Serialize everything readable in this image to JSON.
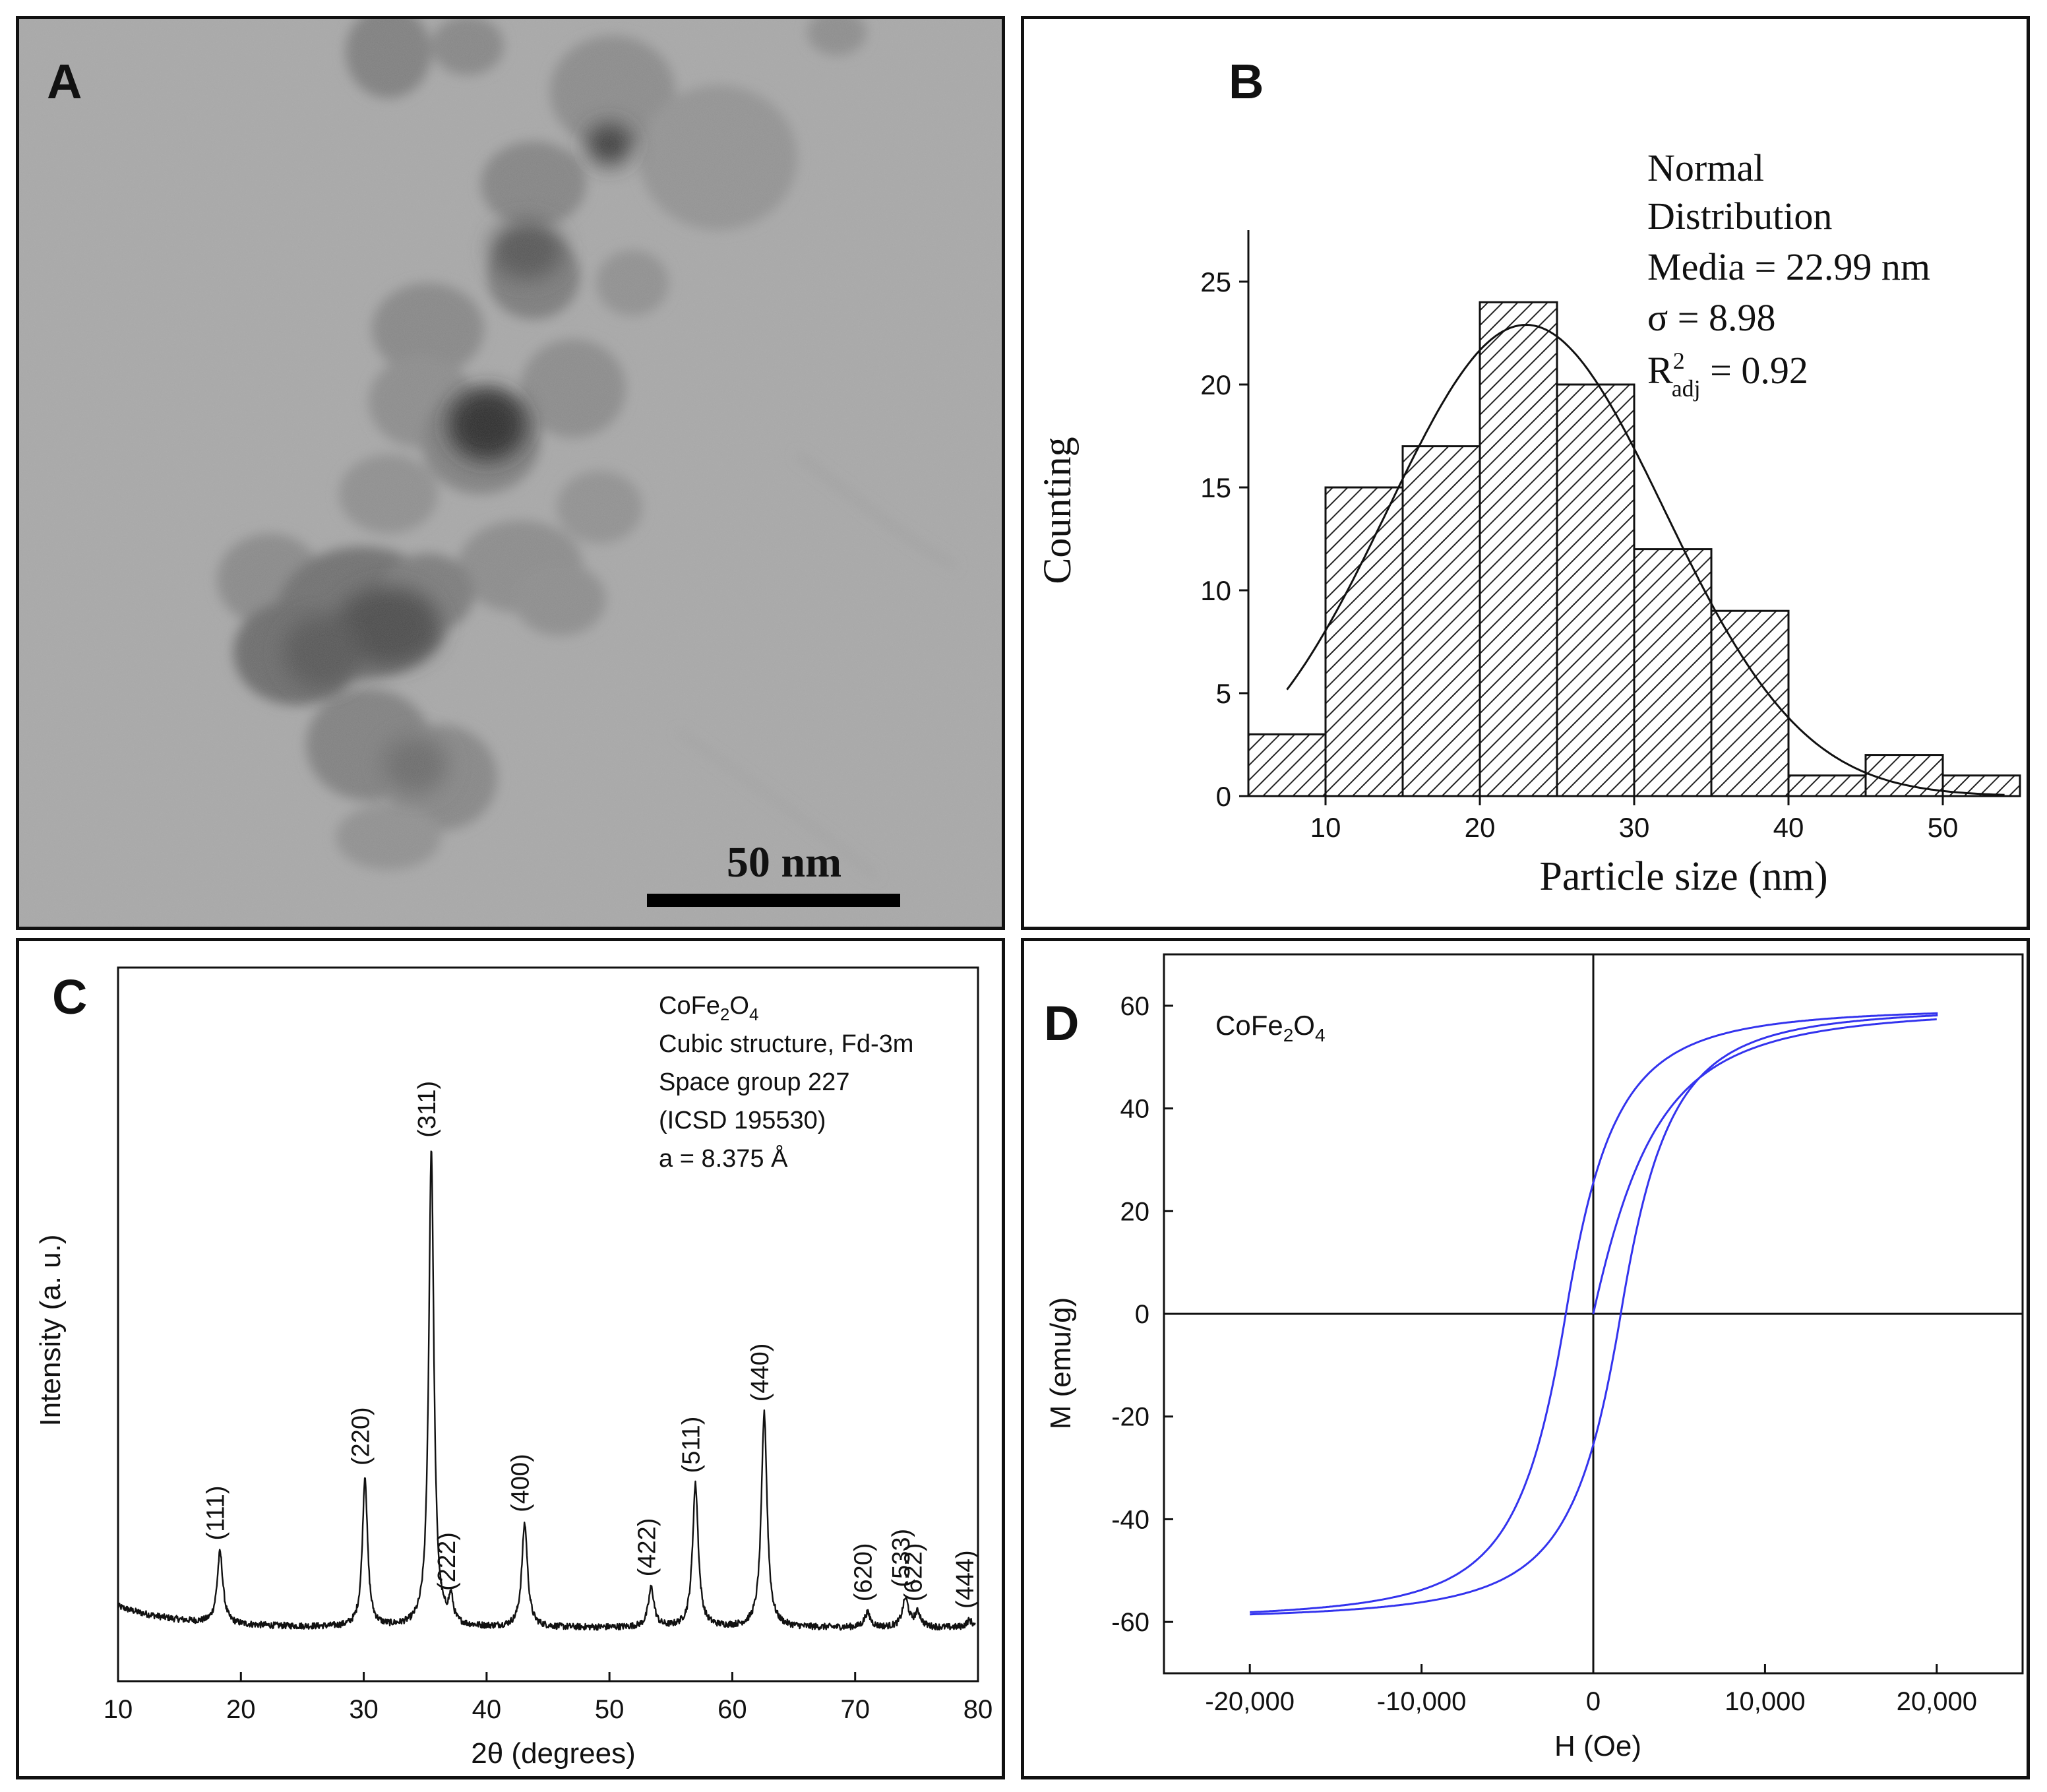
{
  "panels": {
    "a": {
      "letter": "A",
      "scale_bar_label": "50 nm",
      "image_icon": "tem-micrograph-nanoparticles"
    },
    "b": {
      "letter": "B"
    },
    "c": {
      "letter": "C"
    },
    "d": {
      "letter": "D"
    }
  },
  "chart_data": [
    {
      "id": "B",
      "type": "bar",
      "title": "",
      "xlabel": "Particle size (nm)",
      "ylabel": "Counting",
      "xlim": [
        5,
        55
      ],
      "ylim": [
        0,
        27.5
      ],
      "xticks": [
        10,
        20,
        30,
        40,
        50
      ],
      "yticks": [
        0,
        5,
        10,
        15,
        20,
        25
      ],
      "bins": [
        {
          "start": 5,
          "end": 10,
          "count": 3
        },
        {
          "start": 10,
          "end": 15,
          "count": 15
        },
        {
          "start": 15,
          "end": 20,
          "count": 17
        },
        {
          "start": 20,
          "end": 25,
          "count": 24
        },
        {
          "start": 25,
          "end": 30,
          "count": 20
        },
        {
          "start": 30,
          "end": 35,
          "count": 12
        },
        {
          "start": 35,
          "end": 40,
          "count": 9
        },
        {
          "start": 40,
          "end": 45,
          "count": 1
        },
        {
          "start": 45,
          "end": 50,
          "count": 2
        },
        {
          "start": 50,
          "end": 55,
          "count": 1
        }
      ],
      "fit": {
        "type": "normal",
        "mean": 22.99,
        "sigma": 8.98,
        "peak": 22.9,
        "x_start": 7.5,
        "x_end": 54
      },
      "annotation": {
        "line1": "Normal",
        "line2": "Distribution",
        "line3": "Media = 22.99 nm",
        "line4": "σ = 8.98",
        "line5_prefix": "R",
        "line5_sup": "2",
        "line5_sub": "adj",
        "line5_rest": " = 0.92"
      }
    },
    {
      "id": "C",
      "type": "line",
      "title": "",
      "xlabel": "2θ (degrees)",
      "ylabel": "Intensity (a. u.)",
      "xlim": [
        10,
        80
      ],
      "ylim": [
        0,
        100
      ],
      "xticks": [
        10,
        20,
        30,
        40,
        50,
        60,
        70,
        80
      ],
      "baseline": {
        "start": 10.5,
        "end_value": 7.5,
        "decay": 5,
        "x_start": 10,
        "x_end": 79.8
      },
      "peaks": [
        {
          "label": "(111)",
          "two_theta": 18.3,
          "height": 10.0,
          "width": 0.28
        },
        {
          "label": "(220)",
          "two_theta": 30.1,
          "height": 21.0,
          "width": 0.25
        },
        {
          "label": "(311)",
          "two_theta": 35.5,
          "height": 67.0,
          "width": 0.25
        },
        {
          "label": "(222)",
          "two_theta": 37.1,
          "height": 3.5,
          "width": 0.22
        },
        {
          "label": "(400)",
          "two_theta": 43.1,
          "height": 14.5,
          "width": 0.28
        },
        {
          "label": "(422)",
          "two_theta": 53.4,
          "height": 5.5,
          "width": 0.28
        },
        {
          "label": "(511)",
          "two_theta": 57.0,
          "height": 20.0,
          "width": 0.28
        },
        {
          "label": "(440)",
          "two_theta": 62.6,
          "height": 30.0,
          "width": 0.28
        },
        {
          "label": "(620)",
          "two_theta": 71.0,
          "height": 2.0,
          "width": 0.3
        },
        {
          "label": "(533)",
          "two_theta": 74.1,
          "height": 4.0,
          "width": 0.3
        },
        {
          "label": "(622)",
          "two_theta": 75.1,
          "height": 2.0,
          "width": 0.3
        },
        {
          "label": "(444)",
          "two_theta": 79.3,
          "height": 1.0,
          "width": 0.3
        }
      ],
      "annotation": {
        "formula_parts": [
          {
            "text": "CoFe",
            "shift": "none"
          },
          {
            "text": "2",
            "shift": "sub"
          },
          {
            "text": "O",
            "shift": "none"
          },
          {
            "text": "4",
            "shift": "sub"
          }
        ],
        "lines": [
          "Cubic structure, Fd-3m",
          "Space group 227",
          "(ICSD 195530)",
          "a = 8.375 Å"
        ]
      }
    },
    {
      "id": "D",
      "type": "line",
      "title": "",
      "xlabel": "H (Oe)",
      "ylabel": "M (emu/g)",
      "xlim": [
        -25000,
        25000
      ],
      "ylim": [
        -70,
        70
      ],
      "xticks": [
        -20000,
        -10000,
        0,
        10000,
        20000
      ],
      "xtick_labels": [
        "-20,000",
        "-10,000",
        "0",
        "10,000",
        "20,000"
      ],
      "yticks": [
        -60,
        -40,
        -20,
        0,
        20,
        40,
        60
      ],
      "series_color": "#3333ee",
      "hysteresis": {
        "Ms": 66.5,
        "Hc": 1600,
        "H0": 3000,
        "Hmax": 20000,
        "Mr": 23
      },
      "annotation": {
        "formula_parts": [
          {
            "text": "CoFe",
            "shift": "none"
          },
          {
            "text": "2",
            "shift": "sub"
          },
          {
            "text": "O",
            "shift": "none"
          },
          {
            "text": "4",
            "shift": "sub"
          }
        ]
      }
    }
  ]
}
